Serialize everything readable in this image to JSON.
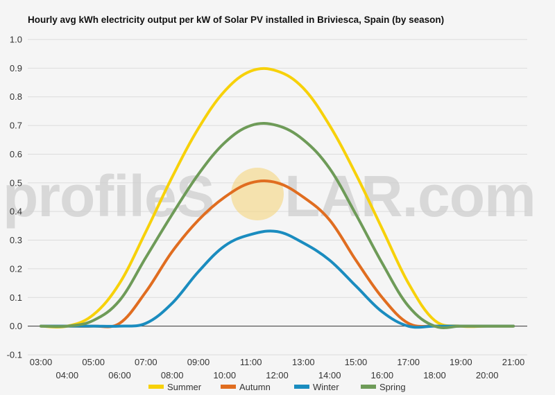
{
  "watermark": {
    "left": "profileS",
    "right": "LAR.com",
    "sun_color": "#f5d787"
  },
  "chart_data": {
    "type": "line",
    "title": "Hourly avg kWh electricity output per kW of Solar PV installed in Briviesca, Spain (by season)",
    "xlabel": "",
    "ylabel": "",
    "ylim": [
      -0.1,
      1.0
    ],
    "yticks": [
      "-0.1",
      "0.0",
      "0.1",
      "0.2",
      "0.3",
      "0.4",
      "0.5",
      "0.6",
      "0.7",
      "0.8",
      "0.9",
      "1.0"
    ],
    "grid": true,
    "legend_position": "bottom",
    "x": [
      "03:00",
      "04:00",
      "05:00",
      "06:00",
      "07:00",
      "08:00",
      "09:00",
      "10:00",
      "11:00",
      "12:00",
      "13:00",
      "14:00",
      "15:00",
      "16:00",
      "17:00",
      "18:00",
      "19:00",
      "20:00",
      "21:00"
    ],
    "series": [
      {
        "name": "Summer",
        "color": "#f7d10a",
        "values": [
          0.0,
          0.0,
          0.04,
          0.15,
          0.33,
          0.52,
          0.69,
          0.82,
          0.89,
          0.89,
          0.83,
          0.7,
          0.53,
          0.34,
          0.15,
          0.02,
          0.0,
          0.0,
          0.0
        ]
      },
      {
        "name": "Autumn",
        "color": "#e06d20",
        "values": [
          0.0,
          0.0,
          0.0,
          0.01,
          0.12,
          0.26,
          0.37,
          0.45,
          0.5,
          0.5,
          0.45,
          0.37,
          0.23,
          0.1,
          0.01,
          0.0,
          0.0,
          0.0,
          0.0
        ]
      },
      {
        "name": "Winter",
        "color": "#1a8cbf",
        "values": [
          0.0,
          0.0,
          0.0,
          0.0,
          0.01,
          0.08,
          0.19,
          0.28,
          0.32,
          0.33,
          0.29,
          0.23,
          0.14,
          0.05,
          0.0,
          0.0,
          0.0,
          0.0,
          0.0
        ]
      },
      {
        "name": "Spring",
        "color": "#6e9b58",
        "values": [
          0.0,
          0.0,
          0.02,
          0.09,
          0.24,
          0.39,
          0.53,
          0.64,
          0.7,
          0.7,
          0.65,
          0.55,
          0.39,
          0.22,
          0.07,
          0.0,
          0.0,
          0.0,
          0.0
        ]
      }
    ]
  }
}
